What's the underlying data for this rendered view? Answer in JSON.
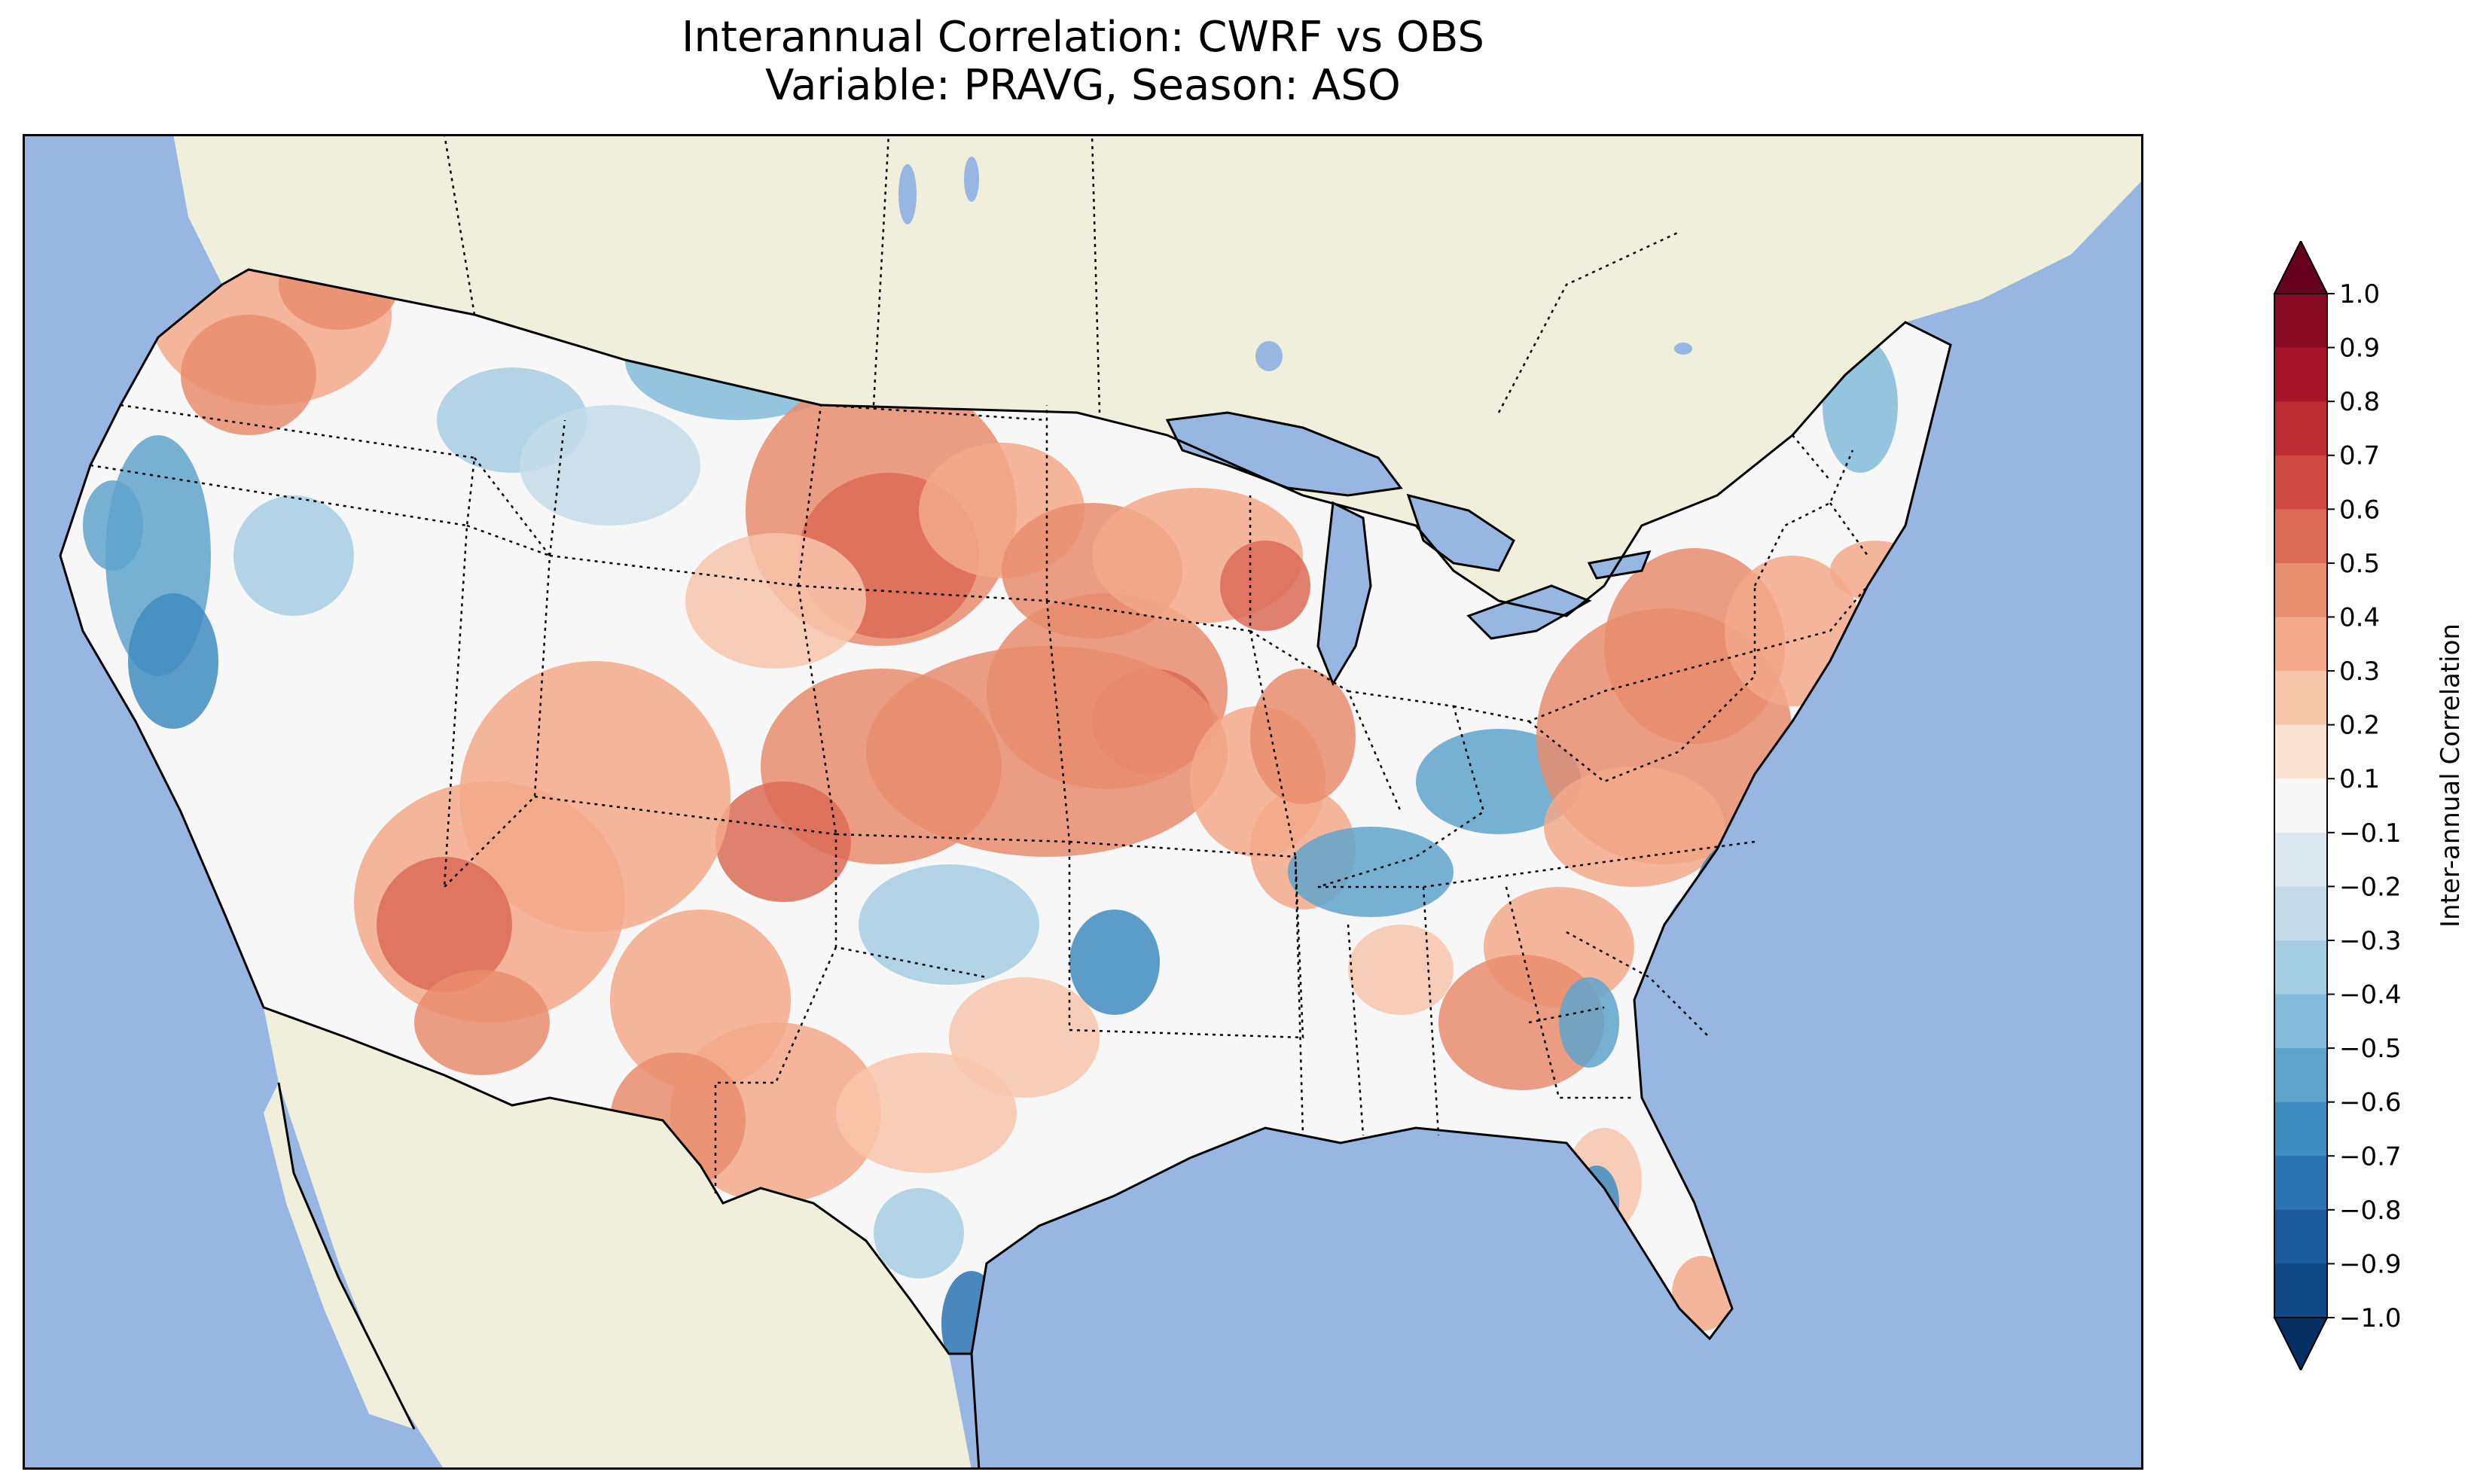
{
  "title": {
    "line1": "Interannual Correlation: CWRF vs OBS",
    "line2": "Variable: PRAVG, Season: ASO"
  },
  "colors": {
    "ocean": "#97b6e1",
    "land": "#efefdb",
    "positive": "#d6604d",
    "negative": "#4393c3"
  },
  "colorbar": {
    "label": "Inter-annual Correlation",
    "colormap": "RdBu_r",
    "extend": "both",
    "range": [
      -1.0,
      1.0
    ],
    "ticks": [
      "1.0",
      "0.9",
      "0.8",
      "0.7",
      "0.6",
      "0.5",
      "0.4",
      "0.3",
      "0.2",
      "0.1",
      "−0.1",
      "−0.2",
      "−0.3",
      "−0.4",
      "−0.5",
      "−0.6",
      "−0.7",
      "−0.8",
      "−0.9",
      "−1.0"
    ],
    "colors": [
      "#67001f",
      "#8a0a25",
      "#a8152b",
      "#bf2d34",
      "#d04a44",
      "#dc6b57",
      "#e98d6f",
      "#f3a98a",
      "#f8c6ab",
      "#fbe2d3",
      "#f7f7f7",
      "#dce9f1",
      "#c4dcea",
      "#a6cee3",
      "#84bbd9",
      "#5fa4cc",
      "#3f8dc0",
      "#2a73b1",
      "#1b5b9e",
      "#0f4a86",
      "#053061"
    ]
  }
}
